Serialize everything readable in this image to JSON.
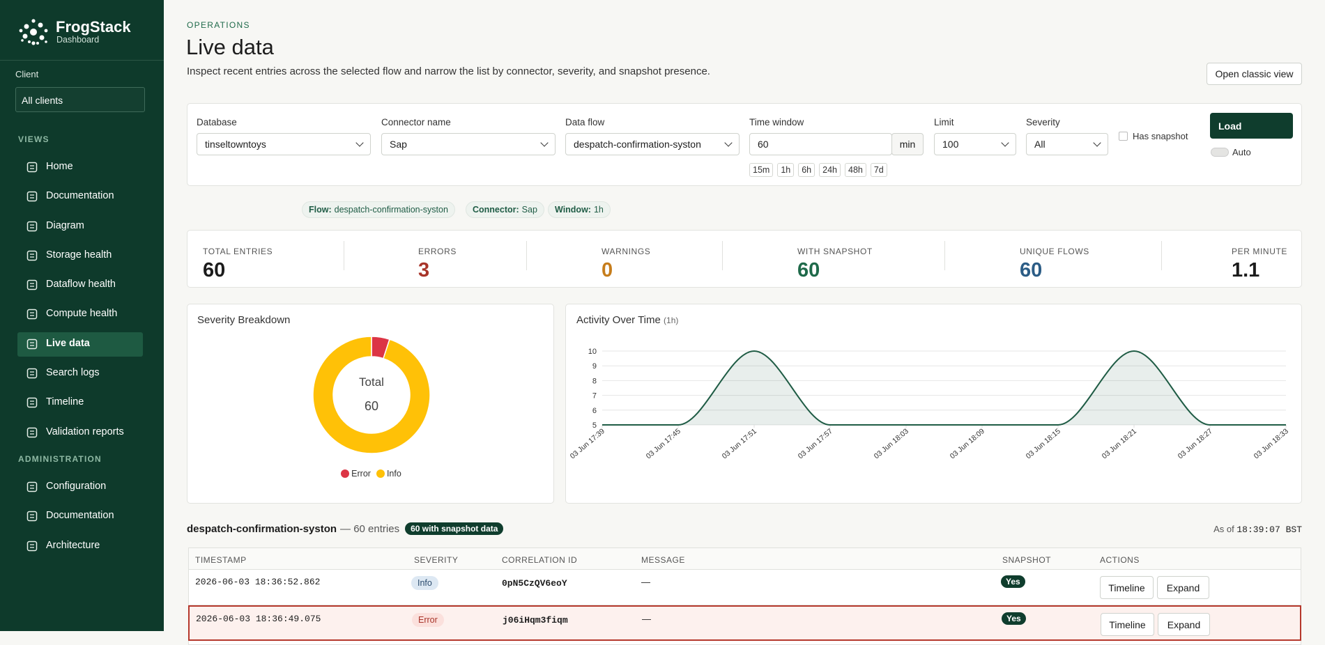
{
  "sidebar": {
    "brand": "FrogStack",
    "subtitle": "Dashboard",
    "client_label": "Client",
    "client_value": "All clients",
    "sections": [
      {
        "title": "VIEWS",
        "items": [
          {
            "label": "Home"
          },
          {
            "label": "Documentation"
          },
          {
            "label": "Diagram"
          },
          {
            "label": "Storage health"
          },
          {
            "label": "Dataflow health"
          },
          {
            "label": "Compute health"
          },
          {
            "label": "Live data",
            "active": true
          },
          {
            "label": "Search logs"
          },
          {
            "label": "Timeline"
          },
          {
            "label": "Validation reports"
          }
        ]
      },
      {
        "title": "ADMINISTRATION",
        "items": [
          {
            "label": "Configuration"
          },
          {
            "label": "Documentation"
          },
          {
            "label": "Architecture"
          }
        ]
      }
    ]
  },
  "header": {
    "eyebrow": "OPERATIONS",
    "title": "Live data",
    "description": "Inspect recent entries across the selected flow and narrow the list by connector, severity, and snapshot presence.",
    "button": "Open classic view"
  },
  "filters": {
    "fields": [
      {
        "label": "Database",
        "value": "tinseltowntoys"
      },
      {
        "label": "Connector name",
        "value": "Sap"
      },
      {
        "label": "Data flow",
        "value": "despatch-confirmation-syston"
      },
      {
        "label": "Time window",
        "value": 60,
        "unit": "min",
        "presets": [
          "15m",
          "1h",
          "6h",
          "24h",
          "48h",
          "7d"
        ]
      },
      {
        "label": "Limit",
        "value": 100
      },
      {
        "label": "Severity",
        "value": "All"
      }
    ],
    "snapshot_label": "Has snapshot",
    "load": "Load",
    "auto": "Auto"
  },
  "chips": [
    {
      "key": "Flow:",
      "value": "despatch-confirmation-syston"
    },
    {
      "key": "Connector:",
      "value": "Sap"
    },
    {
      "key": "Window:",
      "value": "1h"
    }
  ],
  "stats": [
    {
      "label": "TOTAL ENTRIES",
      "value": 60,
      "color": "#1c1c1c"
    },
    {
      "label": "ERRORS",
      "value": 3,
      "color": "#a8352a"
    },
    {
      "label": "WARNINGS",
      "value": 0,
      "color": "#c67d1c"
    },
    {
      "label": "WITH SNAPSHOT",
      "value": 60,
      "color": "#1f6a4a"
    },
    {
      "label": "UNIQUE FLOWS",
      "value": 60,
      "color": "#2c5d86"
    },
    {
      "label": "PER MINUTE",
      "value": 1.1,
      "color": "#1c1c1c"
    }
  ],
  "chart_data": [
    {
      "type": "pie",
      "title": "Severity Breakdown",
      "center_label": "Total",
      "center_value": 60,
      "categories": [
        "Error",
        "Info"
      ],
      "values": [
        3,
        57
      ],
      "colors": [
        "#dc3545",
        "#ffc107"
      ]
    },
    {
      "type": "line",
      "title": "Activity Over Time",
      "subtitle": "(1h)",
      "x": [
        "03 Jun 17:39",
        "03 Jun 17:45",
        "03 Jun 17:51",
        "03 Jun 17:57",
        "03 Jun 18:03",
        "03 Jun 18:09",
        "03 Jun 18:15",
        "03 Jun 18:21",
        "03 Jun 18:27",
        "03 Jun 18:33"
      ],
      "values": [
        5,
        5,
        10,
        5,
        5,
        5,
        5,
        10,
        5,
        5
      ],
      "color": "#1f5c45",
      "ylim": [
        5,
        10
      ],
      "yticks": [
        5,
        6,
        7,
        8,
        9,
        10
      ],
      "grid": true
    }
  ],
  "table": {
    "title": "despatch-confirmation-syston",
    "count_text": "— 60 entries",
    "badge": "60 with snapshot data",
    "as_of_label": "As of",
    "as_of": "18:39:07 BST",
    "columns": [
      "TIMESTAMP",
      "SEVERITY",
      "CORRELATION ID",
      "MESSAGE",
      "SNAPSHOT",
      "ACTIONS"
    ],
    "rows": [
      {
        "timestamp": "2026-06-03 18:36:52.862",
        "severity": "Info",
        "correlation_id": "0pN5CzQV6eoY",
        "message": "—",
        "snapshot": "Yes",
        "actions": [
          "Timeline",
          "Expand"
        ],
        "badge_color": "#dde8f3",
        "badge_text_color": "#2c4c6e"
      },
      {
        "timestamp": "2026-06-03 18:36:49.075",
        "severity": "Error",
        "correlation_id": "j06iHqm3fiqm",
        "message": "—",
        "snapshot": "Yes",
        "actions": [
          "Timeline",
          "Expand"
        ],
        "badge_color": "#fbe0dc",
        "badge_text_color": "#a8352a",
        "highlighted": true
      }
    ]
  }
}
